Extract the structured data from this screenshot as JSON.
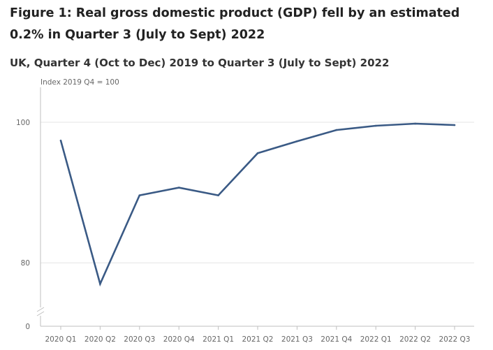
{
  "figure": {
    "title": "Figure 1: Real gross domestic product (GDP) fell by an estimated 0.2% in Quarter 3 (July to Sept) 2022",
    "subtitle": "UK, Quarter 4 (Oct to Dec) 2019 to Quarter 3 (July to Sept) 2022"
  },
  "chart_data": {
    "type": "line",
    "title": "Figure 1: Real gross domestic product (GDP) fell by an estimated 0.2% in Quarter 3 (July to Sept) 2022",
    "subtitle": "UK, Quarter 4 (Oct to Dec) 2019 to Quarter 3 (July to Sept) 2022",
    "ylabel": "Index 2019 Q4 = 100",
    "xlabel": "",
    "categories": [
      "2020 Q1",
      "2020 Q2",
      "2020 Q3",
      "2020 Q4",
      "2021 Q1",
      "2021 Q2",
      "2021 Q3",
      "2021 Q4",
      "2022 Q1",
      "2022 Q2",
      "2022 Q3"
    ],
    "series": [
      {
        "values": [
          97.4,
          77.0,
          89.6,
          90.7,
          89.6,
          95.6,
          97.3,
          98.9,
          99.5,
          99.8,
          99.6
        ]
      }
    ],
    "y_ticks": [
      100,
      80,
      0
    ],
    "y_axis_break": true,
    "ylim": [
      0,
      100
    ],
    "grid": true,
    "line_color": "#3a5a85",
    "grid_color": "#e6e6e6",
    "axis_color": "#bfbfbf"
  }
}
